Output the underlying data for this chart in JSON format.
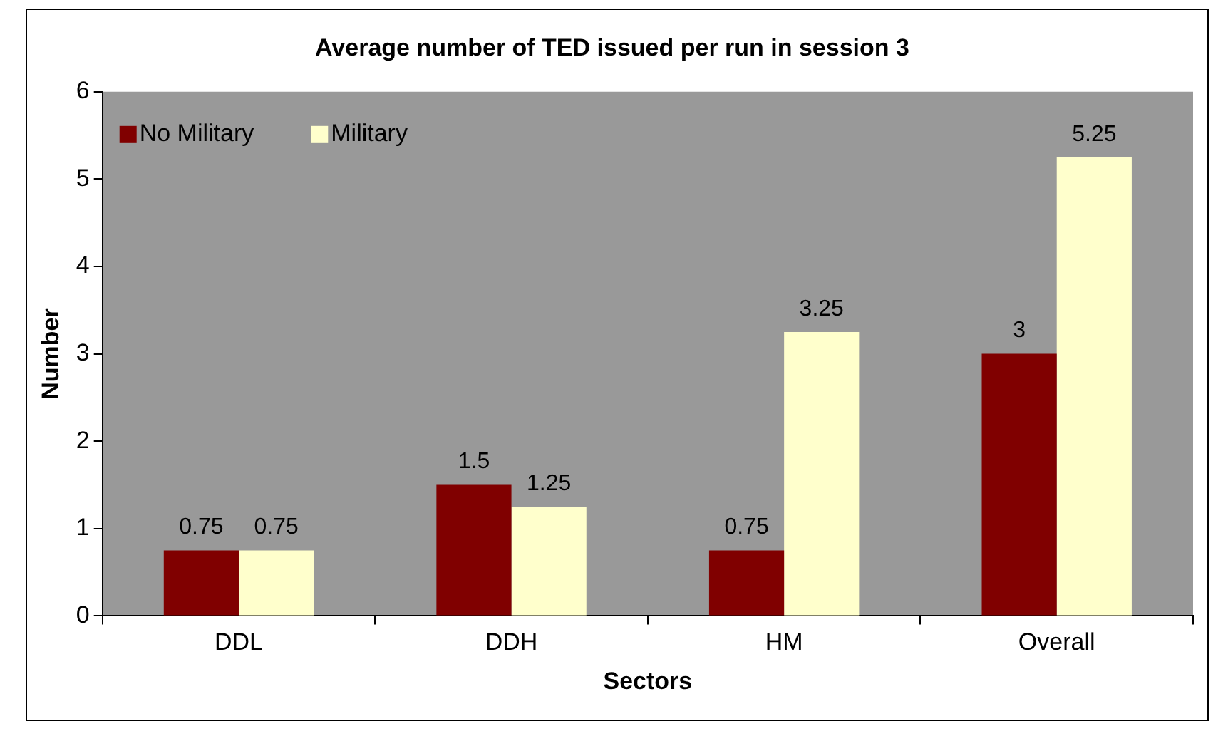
{
  "chart_data": {
    "type": "bar",
    "title": "Average number of TED issued per run in session 3",
    "xlabel": "Sectors",
    "ylabel": "Number",
    "categories": [
      "DDL",
      "DDH",
      "HM",
      "Overall"
    ],
    "series": [
      {
        "name": "No Military",
        "color": "#800000",
        "values": [
          0.75,
          1.5,
          0.75,
          3
        ]
      },
      {
        "name": "Military",
        "color": "#ffffcc",
        "values": [
          0.75,
          1.25,
          3.25,
          5.25
        ]
      }
    ],
    "ylim": [
      0,
      6
    ],
    "yticks": [
      0,
      1,
      2,
      3,
      4,
      5,
      6
    ],
    "grid": false,
    "legend": "top left",
    "data_labels": true
  }
}
